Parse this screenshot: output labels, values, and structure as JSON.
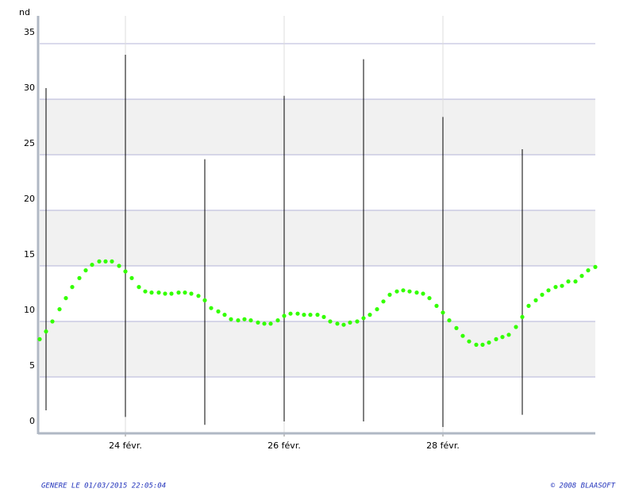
{
  "chart_data": {
    "type": "dotline",
    "y_label": "nd",
    "xlim": [
      22.92,
      29.92
    ],
    "ylim": [
      0,
      35
    ],
    "yticks": [
      0,
      5,
      10,
      15,
      20,
      25,
      30,
      35
    ],
    "xticks": [
      {
        "value": 24,
        "label": "24 févr."
      },
      {
        "value": 26,
        "label": "26 févr."
      },
      {
        "value": 28,
        "label": "28 févr."
      }
    ],
    "bands": true,
    "grid": true,
    "x": [
      22.92,
      23,
      23.08,
      23.17,
      23.25,
      23.33,
      23.42,
      23.5,
      23.58,
      23.67,
      23.75,
      23.83,
      23.92,
      24,
      24.08,
      24.17,
      24.25,
      24.33,
      24.42,
      24.5,
      24.58,
      24.67,
      24.75,
      24.83,
      24.92,
      25,
      25.08,
      25.17,
      25.25,
      25.33,
      25.42,
      25.5,
      25.58,
      25.67,
      25.75,
      25.83,
      25.92,
      26,
      26.08,
      26.17,
      26.25,
      26.33,
      26.42,
      26.5,
      26.58,
      26.67,
      26.75,
      26.83,
      26.92,
      27,
      27.08,
      27.17,
      27.25,
      27.33,
      27.42,
      27.5,
      27.58,
      27.67,
      27.75,
      27.83,
      27.92,
      28,
      28.08,
      28.17,
      28.25,
      28.33,
      28.42,
      28.5,
      28.58,
      28.67,
      28.75,
      28.83,
      28.92,
      29,
      29.08,
      29.17,
      29.25,
      29.33,
      29.42,
      29.5,
      29.58,
      29.67,
      29.75,
      29.83,
      29.92
    ],
    "series": [
      {
        "color": "#33ff00",
        "values": [
          8.4,
          9.1,
          10,
          11.1,
          12.1,
          13.1,
          13.9,
          14.6,
          15.1,
          15.4,
          15.4,
          15.4,
          15,
          14.5,
          13.9,
          13.1,
          12.7,
          12.6,
          12.6,
          12.5,
          12.5,
          12.6,
          12.6,
          12.5,
          12.3,
          11.9,
          11.2,
          10.9,
          10.6,
          10.2,
          10.1,
          10.2,
          10.1,
          9.9,
          9.8,
          9.8,
          10.1,
          10.5,
          10.7,
          10.7,
          10.6,
          10.6,
          10.6,
          10.4,
          10,
          9.8,
          9.7,
          9.9,
          10,
          10.3,
          10.6,
          11.1,
          11.8,
          12.4,
          12.7,
          12.8,
          12.7,
          12.6,
          12.5,
          12.1,
          11.4,
          10.8,
          10.1,
          9.4,
          8.7,
          8.2,
          7.9,
          7.9,
          8.1,
          8.4,
          8.6,
          8.8,
          9.5,
          10.4,
          11.4,
          11.9,
          12.4,
          12.8,
          13.1,
          13.2,
          13.6,
          13.6,
          14.1,
          14.6,
          14.9
        ]
      }
    ],
    "ranges": {
      "color": "#000000",
      "x": [
        23,
        24,
        25,
        26,
        27,
        28,
        29
      ],
      "low": [
        2,
        1.4,
        0.7,
        1,
        1,
        0.5,
        1.6
      ],
      "high": [
        31,
        34,
        24.6,
        30.3,
        33.6,
        28.4,
        25.5
      ]
    }
  },
  "footer": {
    "left": "GENERE LE 01/03/2015 22:05:04",
    "right": "© 2008 BLAASOFT"
  }
}
